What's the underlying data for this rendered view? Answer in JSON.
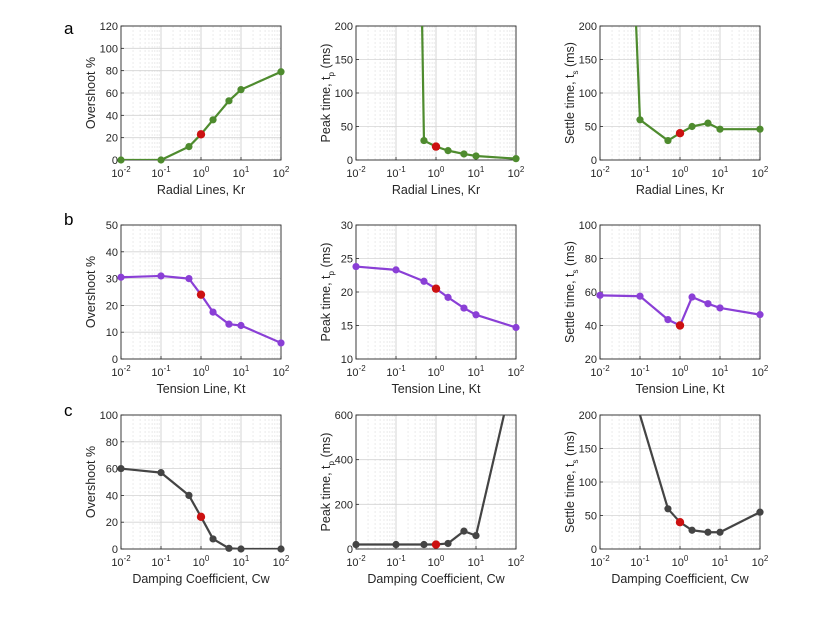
{
  "row_labels": [
    "a",
    "b",
    "c"
  ],
  "colors": {
    "green": "#4e8b2e",
    "purple": "#8a3fd6",
    "gray": "#444444",
    "highlight": "#cc1111"
  },
  "chart_data": [
    {
      "type": "line",
      "row": 0,
      "col": 0,
      "color": "green",
      "xlabel": "Radial Lines, Kr",
      "ylabel": "Overshoot %",
      "xscale": "log",
      "xlim": [
        0.01,
        100
      ],
      "ylim": [
        0,
        120
      ],
      "yticks": [
        0,
        20,
        40,
        60,
        80,
        100,
        120
      ],
      "x": [
        0.01,
        0.1,
        0.5,
        1,
        2,
        5,
        10,
        100
      ],
      "y": [
        0,
        0,
        12,
        23,
        36,
        53,
        63,
        79
      ],
      "highlight_x": 1
    },
    {
      "type": "line",
      "row": 0,
      "col": 1,
      "color": "green",
      "xlabel": "Radial Lines, Kr",
      "ylabel": "Peak time, t",
      "ylabel_sub": "p",
      "ylabel_suffix": " (ms)",
      "xscale": "log",
      "xlim": [
        0.01,
        100
      ],
      "ylim": [
        0,
        200
      ],
      "yticks": [
        0,
        50,
        100,
        150,
        200
      ],
      "x": [
        0.45,
        0.5,
        1,
        2,
        5,
        10,
        100
      ],
      "y": [
        200,
        29,
        20,
        14,
        9,
        6,
        2
      ],
      "highlight_x": 1
    },
    {
      "type": "line",
      "row": 0,
      "col": 2,
      "color": "green",
      "xlabel": "Radial Lines, Kr",
      "ylabel": "Settle time, t",
      "ylabel_sub": "s",
      "ylabel_suffix": " (ms)",
      "xscale": "log",
      "xlim": [
        0.01,
        100
      ],
      "ylim": [
        0,
        200
      ],
      "yticks": [
        0,
        50,
        100,
        150,
        200
      ],
      "x": [
        0.08,
        0.1,
        0.5,
        1,
        2,
        5,
        10,
        100
      ],
      "y": [
        200,
        60,
        29,
        40,
        50,
        55,
        46,
        46
      ],
      "highlight_x": 1
    },
    {
      "type": "line",
      "row": 1,
      "col": 0,
      "color": "purple",
      "xlabel": "Tension Line, Kt",
      "ylabel": "Overshoot %",
      "xscale": "log",
      "xlim": [
        0.01,
        100
      ],
      "ylim": [
        0,
        50
      ],
      "yticks": [
        0,
        10,
        20,
        30,
        40,
        50
      ],
      "x": [
        0.01,
        0.1,
        0.5,
        1,
        2,
        5,
        10,
        100
      ],
      "y": [
        30.5,
        31,
        30,
        24,
        17.5,
        13,
        12.5,
        6
      ],
      "highlight_x": 1
    },
    {
      "type": "line",
      "row": 1,
      "col": 1,
      "color": "purple",
      "xlabel": "Tension Line, Kt",
      "ylabel": "Peak time, t",
      "ylabel_sub": "p",
      "ylabel_suffix": " (ms)",
      "xscale": "log",
      "xlim": [
        0.01,
        100
      ],
      "ylim": [
        10,
        30
      ],
      "yticks": [
        10,
        15,
        20,
        25,
        30
      ],
      "x": [
        0.01,
        0.1,
        0.5,
        1,
        2,
        5,
        10,
        100
      ],
      "y": [
        23.8,
        23.3,
        21.6,
        20.5,
        19.2,
        17.6,
        16.6,
        14.7
      ],
      "highlight_x": 1
    },
    {
      "type": "line",
      "row": 1,
      "col": 2,
      "color": "purple",
      "xlabel": "Tension Line, Kt",
      "ylabel": "Settle time, t",
      "ylabel_sub": "s",
      "ylabel_suffix": " (ms)",
      "xscale": "log",
      "xlim": [
        0.01,
        100
      ],
      "ylim": [
        20,
        100
      ],
      "yticks": [
        20,
        40,
        60,
        80,
        100
      ],
      "x": [
        0.01,
        0.1,
        0.5,
        1,
        2,
        5,
        10,
        100
      ],
      "y": [
        58,
        57.5,
        43.5,
        40,
        57,
        53,
        50.5,
        46.5
      ],
      "highlight_x": 1
    },
    {
      "type": "line",
      "row": 2,
      "col": 0,
      "color": "gray",
      "xlabel": "Damping Coefficient, Cw",
      "ylabel": "Overshoot %",
      "xscale": "log",
      "xlim": [
        0.01,
        100
      ],
      "ylim": [
        0,
        100
      ],
      "yticks": [
        0,
        20,
        40,
        60,
        80,
        100
      ],
      "x": [
        0.01,
        0.1,
        0.5,
        1,
        2,
        5,
        10,
        100
      ],
      "y": [
        60,
        57,
        40,
        24,
        7.5,
        0.5,
        0,
        0
      ],
      "highlight_x": 1
    },
    {
      "type": "line",
      "row": 2,
      "col": 1,
      "color": "gray",
      "xlabel": "Damping Coefficient, Cw",
      "ylabel": "Peak time, t",
      "ylabel_sub": "p",
      "ylabel_suffix": " (ms)",
      "xscale": "log",
      "xlim": [
        0.01,
        100
      ],
      "ylim": [
        0,
        600
      ],
      "yticks": [
        0,
        200,
        400,
        600
      ],
      "x": [
        0.01,
        0.1,
        0.5,
        1,
        2,
        5,
        10,
        50
      ],
      "y": [
        20,
        20,
        20,
        20,
        25,
        80,
        60,
        600
      ],
      "highlight_x": 1
    },
    {
      "type": "line",
      "row": 2,
      "col": 2,
      "color": "gray",
      "xlabel": "Damping Coefficient, Cw",
      "ylabel": "Settle time, t",
      "ylabel_sub": "s",
      "ylabel_suffix": " (ms)",
      "xscale": "log",
      "xlim": [
        0.01,
        100
      ],
      "ylim": [
        0,
        200
      ],
      "yticks": [
        0,
        50,
        100,
        150,
        200
      ],
      "x": [
        0.1,
        0.5,
        1,
        2,
        5,
        10,
        100
      ],
      "y": [
        200,
        60,
        40,
        28,
        25,
        25,
        55
      ],
      "highlight_x": 1
    }
  ]
}
